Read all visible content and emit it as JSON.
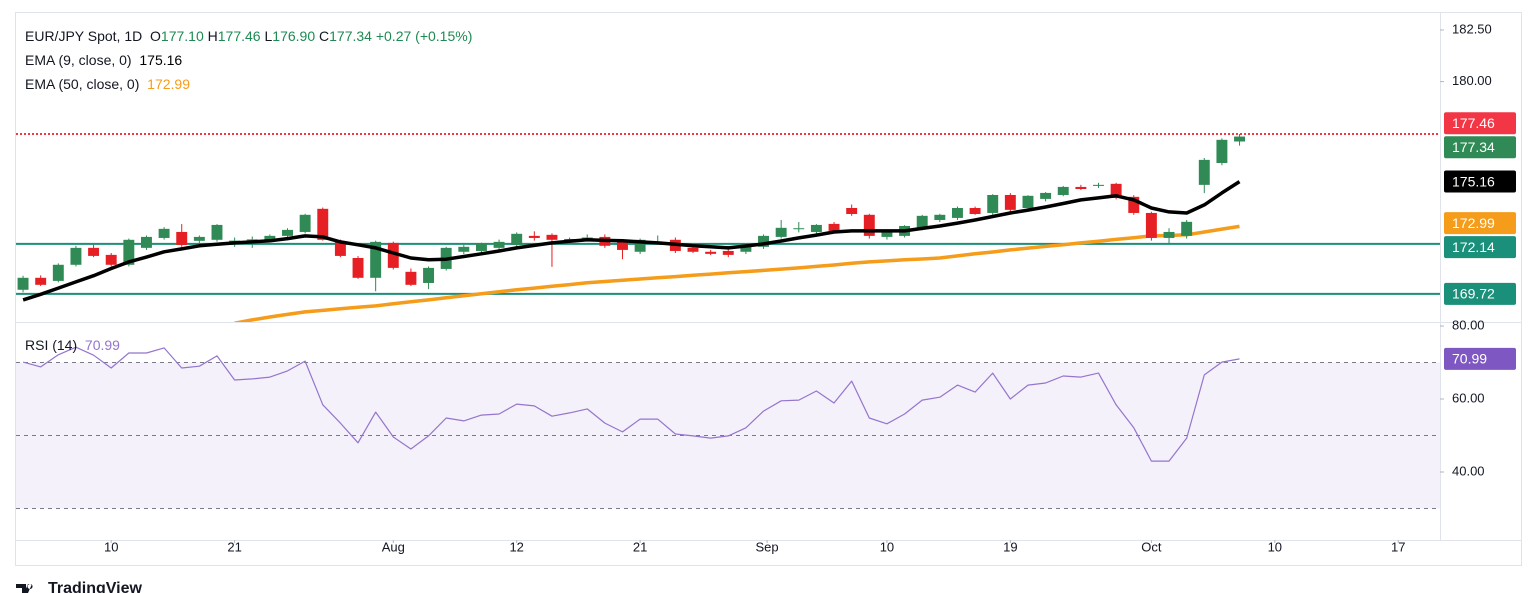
{
  "chart_data": [
    {
      "type": "candlestick",
      "title": "EUR/JPY Spot, 1D",
      "legend": {
        "keys": [
          "O",
          "H",
          "L",
          "C"
        ],
        "values": [
          177.1,
          177.46,
          176.9,
          177.34
        ],
        "value_labels": [
          "177.10",
          "177.46",
          "176.90",
          "177.34"
        ]
      },
      "change": "+0.27 (+0.15%)",
      "up_color": "#2f8a55",
      "down_color": "#e51f23",
      "open": [
        169.92,
        170.5,
        170.35,
        171.13,
        171.95,
        171.61,
        171.13,
        171.95,
        172.43,
        172.72,
        172.29,
        172.34,
        172.29,
        172.34,
        172.34,
        172.53,
        172.72,
        173.84,
        172.24,
        171.46,
        170.5,
        172.19,
        170.79,
        170.25,
        170.93,
        171.76,
        171.8,
        171.95,
        172.09,
        172.53,
        172.58,
        172.24,
        172.43,
        172.48,
        172.24,
        171.76,
        172.24,
        172.34,
        171.95,
        171.76,
        171.8,
        171.76,
        172.0,
        172.48,
        172.87,
        172.72,
        173.11,
        173.88,
        173.55,
        172.48,
        172.53,
        172.87,
        173.3,
        173.4,
        173.88,
        173.64,
        174.51,
        173.88,
        174.32,
        174.51,
        174.9,
        174.95,
        175.05,
        174.42,
        173.64,
        172.43,
        172.53,
        175.0,
        176.06,
        177.1
      ],
      "high": [
        170.6,
        170.62,
        171.2,
        172.05,
        172.1,
        171.7,
        172.4,
        172.55,
        172.95,
        173.1,
        172.55,
        173.1,
        172.45,
        172.5,
        172.6,
        172.9,
        173.6,
        173.9,
        172.35,
        171.55,
        172.3,
        172.25,
        170.95,
        171.05,
        172.0,
        172.1,
        172.2,
        172.35,
        172.7,
        172.75,
        172.65,
        172.45,
        172.6,
        172.6,
        172.3,
        172.4,
        172.55,
        172.45,
        172.0,
        171.85,
        171.9,
        172.15,
        172.6,
        173.3,
        173.2,
        173.1,
        173.2,
        174.05,
        173.6,
        172.75,
        173.05,
        173.55,
        173.6,
        173.95,
        173.95,
        174.55,
        174.6,
        174.5,
        174.65,
        174.95,
        175.0,
        175.1,
        175.1,
        174.5,
        173.7,
        172.9,
        173.3,
        176.3,
        177.25,
        177.46
      ],
      "low": [
        169.8,
        170.1,
        170.28,
        171.05,
        171.5,
        171.05,
        171.05,
        171.85,
        172.35,
        172.0,
        172.1,
        172.25,
        172.0,
        171.95,
        172.25,
        172.45,
        172.65,
        172.3,
        171.5,
        170.45,
        169.85,
        170.9,
        170.1,
        169.95,
        170.85,
        171.65,
        171.7,
        171.85,
        172.0,
        172.3,
        171.03,
        172.15,
        172.3,
        171.95,
        171.4,
        171.65,
        172.1,
        171.7,
        171.7,
        171.6,
        171.5,
        171.65,
        171.9,
        172.4,
        172.7,
        172.6,
        172.7,
        173.5,
        172.4,
        172.35,
        172.45,
        172.8,
        173.2,
        173.3,
        173.55,
        173.55,
        173.7,
        173.8,
        174.2,
        174.45,
        174.75,
        174.85,
        174.3,
        173.55,
        172.3,
        172.15,
        172.4,
        174.6,
        175.95,
        176.9
      ],
      "close": [
        170.5,
        170.16,
        171.13,
        171.95,
        171.56,
        171.13,
        172.34,
        172.48,
        172.87,
        172.09,
        172.48,
        173.06,
        172.3,
        172.36,
        172.53,
        172.82,
        173.55,
        172.34,
        171.56,
        170.5,
        172.24,
        170.98,
        170.16,
        170.98,
        171.95,
        172.0,
        172.14,
        172.24,
        172.63,
        172.43,
        172.34,
        172.38,
        172.45,
        172.05,
        171.85,
        172.34,
        172.26,
        171.8,
        171.76,
        171.66,
        171.61,
        172.09,
        172.53,
        172.92,
        172.9,
        173.06,
        172.77,
        173.59,
        172.53,
        172.72,
        173.01,
        173.5,
        173.55,
        173.88,
        173.59,
        174.51,
        173.79,
        174.47,
        174.61,
        174.9,
        174.8,
        175.0,
        174.37,
        173.64,
        172.43,
        172.72,
        173.21,
        176.21,
        177.18,
        177.34
      ],
      "series": [
        {
          "name": "EMA (9, close, 0)",
          "color": "#000000",
          "values": [
            169.43,
            169.7,
            170.0,
            170.3,
            170.6,
            170.95,
            171.27,
            171.5,
            171.76,
            171.9,
            172.05,
            172.12,
            172.19,
            172.24,
            172.29,
            172.4,
            172.53,
            172.48,
            172.24,
            172.1,
            171.95,
            171.7,
            171.46,
            171.37,
            171.4,
            171.53,
            171.66,
            171.8,
            171.95,
            172.07,
            172.19,
            172.27,
            172.34,
            172.31,
            172.29,
            172.24,
            172.19,
            172.12,
            172.05,
            172.0,
            171.95,
            172.04,
            172.14,
            172.28,
            172.43,
            172.57,
            172.72,
            172.77,
            172.77,
            172.77,
            172.77,
            172.89,
            173.01,
            173.15,
            173.3,
            173.47,
            173.64,
            173.78,
            173.93,
            174.1,
            174.27,
            174.37,
            174.47,
            174.27,
            173.88,
            173.69,
            173.64,
            174.03,
            174.61,
            175.16
          ]
        },
        {
          "name": "EMA (50, close, 0)",
          "color": "#f59c1a",
          "values": [
            null,
            null,
            null,
            null,
            null,
            null,
            null,
            null,
            null,
            null,
            null,
            null,
            168.3,
            168.46,
            168.6,
            168.73,
            168.85,
            168.92,
            169.0,
            169.07,
            169.14,
            169.24,
            169.34,
            169.43,
            169.53,
            169.63,
            169.73,
            169.82,
            169.92,
            170.0,
            170.09,
            170.17,
            170.26,
            170.32,
            170.38,
            170.44,
            170.5,
            170.56,
            170.62,
            170.68,
            170.74,
            170.8,
            170.86,
            170.92,
            170.98,
            171.05,
            171.12,
            171.2,
            171.27,
            171.32,
            171.37,
            171.41,
            171.46,
            171.56,
            171.66,
            171.75,
            171.85,
            171.94,
            172.02,
            172.1,
            172.19,
            172.27,
            172.36,
            172.44,
            172.53,
            172.55,
            172.58,
            172.72,
            172.86,
            172.99
          ]
        }
      ],
      "hlines": [
        {
          "value": 177.46,
          "color": "#f23645",
          "style": "dotted"
        },
        {
          "value": 172.14,
          "color": "#1a8f7a",
          "style": "solid"
        },
        {
          "value": 169.72,
          "color": "#1a8f7a",
          "style": "solid"
        }
      ],
      "xlim": [
        -0.4,
        80.37
      ],
      "ylim": [
        168.36,
        183.37
      ],
      "yticks": [
        {
          "value": 180,
          "label": "180.00"
        },
        {
          "value": 182.5,
          "label": "182.50"
        }
      ]
    },
    {
      "type": "line",
      "series": [
        {
          "name": "RSI (14)",
          "color": "#9575cd",
          "values": [
            70.1,
            68.8,
            72.1,
            74.2,
            72.0,
            68.5,
            72.6,
            72.6,
            74.0,
            68.5,
            69.0,
            71.8,
            65.2,
            65.5,
            66.0,
            67.7,
            70.4,
            58.4,
            53.4,
            48.0,
            56.4,
            49.6,
            46.3,
            49.9,
            54.8,
            54.0,
            55.6,
            55.9,
            58.6,
            58.1,
            55.3,
            56.2,
            57.3,
            53.4,
            51.0,
            54.5,
            54.5,
            50.4,
            49.9,
            49.3,
            49.9,
            52.1,
            56.7,
            59.5,
            59.7,
            62.2,
            58.9,
            64.9,
            54.8,
            53.2,
            55.9,
            59.7,
            60.5,
            63.8,
            61.9,
            67.1,
            60.0,
            63.8,
            64.4,
            66.3,
            66.0,
            67.1,
            58.4,
            52.1,
            43.0,
            43.0,
            49.3,
            66.6,
            70.1,
            70.99
          ]
        }
      ],
      "tag_color": "#7e57c2",
      "levels": [
        30,
        50,
        70
      ],
      "band": [
        30,
        70
      ],
      "xlim": [
        -0.4,
        80.37
      ],
      "ylim": [
        21.37,
        81.1
      ],
      "yticks": [
        {
          "value": 40,
          "label": "40.00"
        },
        {
          "value": 60,
          "label": "60.00"
        },
        {
          "value": 80,
          "label": "80.00"
        }
      ],
      "xticks": [
        {
          "value": 5,
          "label": "10"
        },
        {
          "value": 12,
          "label": "21"
        },
        {
          "value": 21,
          "label": "Aug"
        },
        {
          "value": 28,
          "label": "12"
        },
        {
          "value": 35,
          "label": "21"
        },
        {
          "value": 42.2,
          "label": "Sep"
        },
        {
          "value": 49,
          "label": "10"
        },
        {
          "value": 56,
          "label": "19"
        },
        {
          "value": 64,
          "label": "Oct"
        },
        {
          "value": 71,
          "label": "10"
        },
        {
          "value": 78,
          "label": "17"
        }
      ]
    }
  ],
  "footer": "TradingView"
}
